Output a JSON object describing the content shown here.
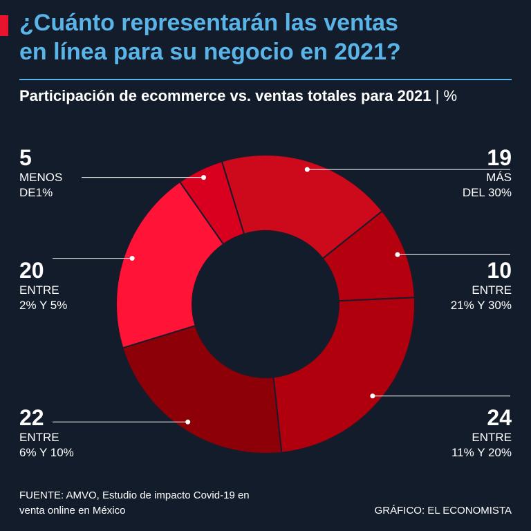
{
  "header": {
    "title": "¿Cuánto representarán las ventas\nen línea para su negocio en 2021?",
    "subtitle": "Participación de ecommerce vs. ventas totales para 2021",
    "unit": "%"
  },
  "chart_data": {
    "type": "pie",
    "style": "donut",
    "title": "¿Cuánto representarán las ventas en línea para su negocio en 2021?",
    "subtitle": "Participación de ecommerce vs. ventas totales para 2021 | %",
    "categories": [
      "MÁS DEL 30%",
      "ENTRE 21% Y 30%",
      "ENTRE 11% Y 20%",
      "ENTRE 6% Y 10%",
      "ENTRE 2% Y 5%",
      "MENOS DE1%"
    ],
    "values": [
      19,
      10,
      24,
      22,
      20,
      5
    ],
    "colors": [
      "#cc0a1c",
      "#b5000f",
      "#b0000e",
      "#8e0008",
      "#ff1438",
      "#d8001e"
    ]
  },
  "labels": [
    {
      "value": "19",
      "desc": "MÁS\nDEL 30%"
    },
    {
      "value": "10",
      "desc": "ENTRE\n21% Y 30%"
    },
    {
      "value": "24",
      "desc": "ENTRE\n11% Y 20%"
    },
    {
      "value": "22",
      "desc": "ENTRE\n6% Y 10%"
    },
    {
      "value": "20",
      "desc": "ENTRE\n2% Y 5%"
    },
    {
      "value": "5",
      "desc": "MENOS\nDE1%"
    }
  ],
  "footer": {
    "source": "FUENTE: AMVO, Estudio de impacto Covid-19 en\nventa online en México",
    "credit": "GRÁFICO: EL ECONOMISTA"
  },
  "colors": {
    "background": "#131c2a",
    "title": "#5ab4e8",
    "accent": "#e8142e"
  }
}
